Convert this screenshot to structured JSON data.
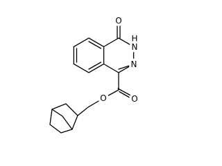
{
  "atoms": [
    {
      "label": "O"
    },
    {
      "label": "H"
    },
    {
      "label": "N"
    },
    {
      "label": "N"
    },
    {
      "label": "O"
    },
    {
      "label": "O"
    }
  ]
}
